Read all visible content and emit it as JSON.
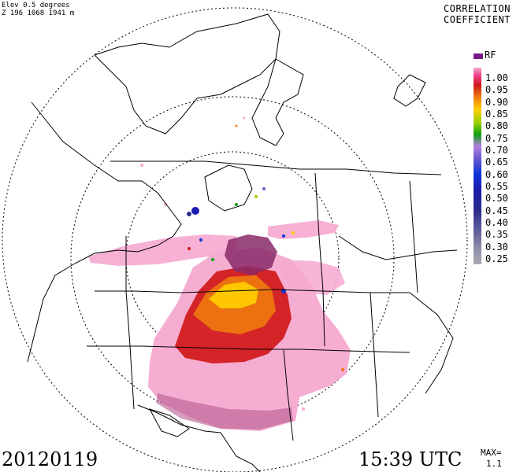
{
  "header": {
    "line1": "Elev 0.5 degrees",
    "line2": "Z 196 1068 1941 m"
  },
  "title": {
    "line1": "CORRELATION",
    "line2": "COEFFICIENT"
  },
  "legend": {
    "rf_label": "RF",
    "rf_color": "#7a1a8a",
    "ticks": [
      "1.00",
      "0.95",
      "0.90",
      "0.85",
      "0.80",
      "0.75",
      "0.70",
      "0.65",
      "0.60",
      "0.55",
      "0.50",
      "0.45",
      "0.40",
      "0.35",
      "0.30",
      "0.25"
    ]
  },
  "footer": {
    "date": "20120119",
    "time": "15:39 UTC",
    "max_label": "MAX=",
    "max_value": "1.1"
  },
  "colors": {
    "echo_pink": "#f6a9d0",
    "echo_red": "#d01818",
    "echo_orange": "#f07a10",
    "echo_yellow": "#ffd000",
    "echo_purple": "#8a2a6a"
  }
}
